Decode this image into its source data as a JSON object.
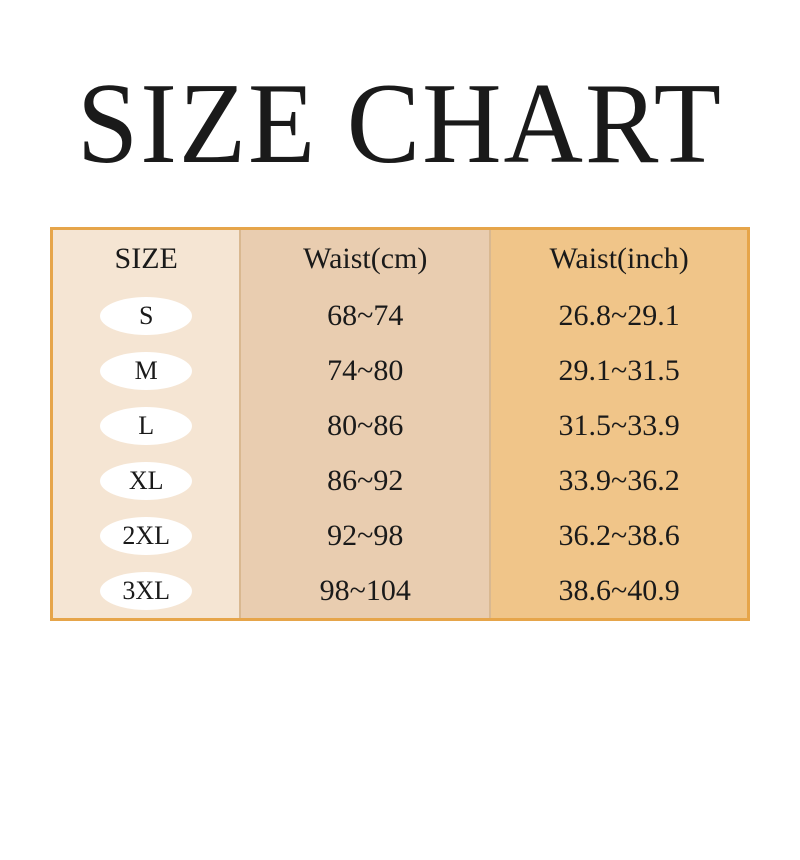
{
  "title": "SIZE CHART",
  "table": {
    "type": "table",
    "border_color": "#e6a54a",
    "column_bg": [
      "#f5e5d3",
      "#e9cdb0",
      "#f0c589"
    ],
    "pill_bg": "#ffffff",
    "columns": [
      "SIZE",
      "Waist(cm)",
      "Waist(inch)"
    ],
    "column_widths_pct": [
      27,
      36,
      37
    ],
    "header_fontsize": 30,
    "cell_fontsize": 30,
    "pill_fontsize": 26,
    "rows": [
      {
        "size": "S",
        "cm": "68~74",
        "inch": "26.8~29.1"
      },
      {
        "size": "M",
        "cm": "74~80",
        "inch": "29.1~31.5"
      },
      {
        "size": "L",
        "cm": "80~86",
        "inch": "31.5~33.9"
      },
      {
        "size": "XL",
        "cm": "86~92",
        "inch": "33.9~36.2"
      },
      {
        "size": "2XL",
        "cm": "92~98",
        "inch": "36.2~38.6"
      },
      {
        "size": "3XL",
        "cm": "98~104",
        "inch": "38.6~40.9"
      }
    ]
  }
}
